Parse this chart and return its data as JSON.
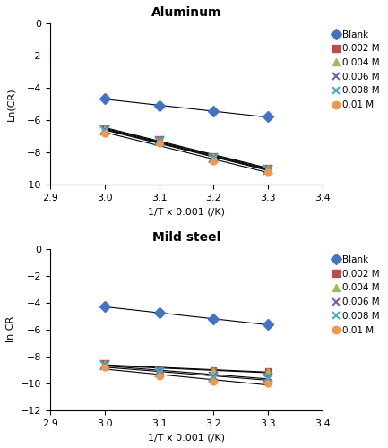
{
  "aluminum": {
    "title": "Aluminum",
    "ylabel": "Ln(CR)",
    "xlabel": "1/T x 0.001 (/K)",
    "xlim": [
      2.9,
      3.4
    ],
    "ylim": [
      -10.0,
      0.0
    ],
    "yticks": [
      0.0,
      -2.0,
      -4.0,
      -6.0,
      -8.0,
      -10.0
    ],
    "xticks": [
      2.9,
      3.0,
      3.1,
      3.2,
      3.3,
      3.4
    ],
    "series": {
      "Blank": {
        "x": [
          3.0,
          3.1,
          3.2,
          3.3
        ],
        "y": [
          -4.65,
          -5.1,
          -5.45,
          -5.78
        ],
        "color": "#4472C4",
        "marker": "D",
        "ms": 6
      },
      "0.002 M": {
        "x": [
          3.0,
          3.1,
          3.2,
          3.3
        ],
        "y": [
          -6.5,
          -7.15,
          -8.2,
          -8.95
        ],
        "color": "#BE4B48",
        "marker": "s",
        "ms": 5
      },
      "0.004 M": {
        "x": [
          3.0,
          3.1,
          3.2,
          3.3
        ],
        "y": [
          -6.55,
          -7.2,
          -8.25,
          -9.0
        ],
        "color": "#9BBB59",
        "marker": "^",
        "ms": 6
      },
      "0.006 M": {
        "x": [
          3.0,
          3.1,
          3.2,
          3.3
        ],
        "y": [
          -6.6,
          -7.25,
          -8.3,
          -9.05
        ],
        "color": "#8064A2",
        "marker": "x",
        "ms": 7
      },
      "0.008 M": {
        "x": [
          3.0,
          3.1,
          3.2,
          3.3
        ],
        "y": [
          -6.65,
          -7.3,
          -8.35,
          -9.1
        ],
        "color": "#4BACC6",
        "marker": "x",
        "ms": 7
      },
      "0.01 M": {
        "x": [
          3.0,
          3.1,
          3.2,
          3.3
        ],
        "y": [
          -6.8,
          -7.4,
          -8.55,
          -9.2
        ],
        "color": "#F79646",
        "marker": "o",
        "ms": 5
      }
    }
  },
  "mild_steel": {
    "title": "Mild steel",
    "ylabel": "ln CR",
    "xlabel": "1/T x 0.001 (/K)",
    "xlim": [
      2.9,
      3.4
    ],
    "ylim": [
      -12.0,
      0.0
    ],
    "yticks": [
      0.0,
      -2.0,
      -4.0,
      -6.0,
      -8.0,
      -10.0,
      -12.0
    ],
    "xticks": [
      2.9,
      3.0,
      3.1,
      3.2,
      3.3,
      3.4
    ],
    "series": {
      "Blank": {
        "x": [
          3.0,
          3.1,
          3.2,
          3.3
        ],
        "y": [
          -4.3,
          -4.78,
          -5.2,
          -5.65
        ],
        "color": "#4472C4",
        "marker": "D",
        "ms": 6
      },
      "0.002 M": {
        "x": [
          3.0,
          3.1,
          3.2,
          3.3
        ],
        "y": [
          -8.5,
          -9.0,
          -9.0,
          -9.1
        ],
        "color": "#BE4B48",
        "marker": "s",
        "ms": 5
      },
      "0.004 M": {
        "x": [
          3.0,
          3.1,
          3.2,
          3.3
        ],
        "y": [
          -8.55,
          -9.05,
          -9.05,
          -9.15
        ],
        "color": "#9BBB59",
        "marker": "^",
        "ms": 6
      },
      "0.006 M": {
        "x": [
          3.0,
          3.1,
          3.2,
          3.3
        ],
        "y": [
          -8.6,
          -9.1,
          -9.5,
          -9.55
        ],
        "color": "#8064A2",
        "marker": "x",
        "ms": 7
      },
      "0.008 M": {
        "x": [
          3.0,
          3.1,
          3.2,
          3.3
        ],
        "y": [
          -8.7,
          -9.2,
          -9.6,
          -9.65
        ],
        "color": "#4BACC6",
        "marker": "x",
        "ms": 7
      },
      "0.01 M": {
        "x": [
          3.0,
          3.1,
          3.2,
          3.3
        ],
        "y": [
          -8.8,
          -9.5,
          -9.85,
          -10.0
        ],
        "color": "#F79646",
        "marker": "o",
        "ms": 5
      }
    }
  },
  "legend_labels": [
    "Blank",
    "0.002 M",
    "0.004 M",
    "0.006 M",
    "0.008 M",
    "0.01 M"
  ],
  "legend_colors": [
    "#4472C4",
    "#BE4B48",
    "#9BBB59",
    "#8064A2",
    "#4BACC6",
    "#F79646"
  ],
  "legend_markers": [
    "D",
    "s",
    "^",
    "x",
    "x",
    "o"
  ]
}
